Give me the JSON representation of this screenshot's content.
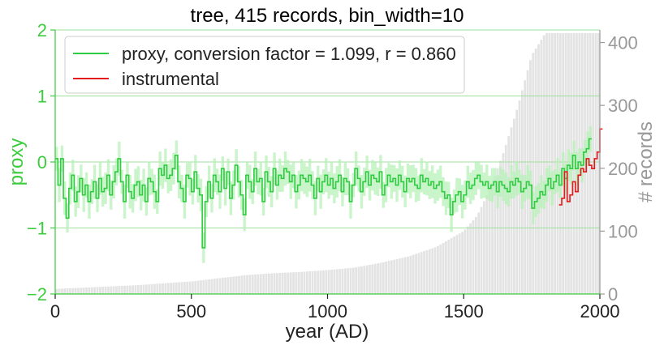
{
  "chart_data": {
    "type": "line",
    "title": "tree, 415 records, bin_width=10",
    "xlabel": "year (AD)",
    "ylabel": "proxy",
    "y2label": "# records",
    "xlim": [
      0,
      2000
    ],
    "ylim": [
      -2,
      2
    ],
    "y2lim": [
      0,
      420
    ],
    "x_ticks": [
      "0",
      "500",
      "1000",
      "1500",
      "2000"
    ],
    "y_ticks": [
      "−2",
      "−1",
      "0",
      "1",
      "2"
    ],
    "y2_ticks": [
      "0",
      "100",
      "200",
      "300",
      "400"
    ],
    "grid": "horizontal",
    "legend_position": "top-left",
    "colors": {
      "proxy": "#2ecc40",
      "proxy_band": "#b8f0b8",
      "instrumental": "#e31a1c",
      "records": "#e3e3e3",
      "axis_left": "#3dcc3d",
      "axis_right": "#999999",
      "grid": "#9fe09f"
    },
    "legend": [
      {
        "label": "proxy, conversion factor = 1.099, r = 0.860",
        "color": "#2ecc40"
      },
      {
        "label": "instrumental",
        "color": "#e31a1c"
      }
    ],
    "records": {
      "x": [
        0,
        100,
        200,
        300,
        400,
        500,
        600,
        700,
        800,
        900,
        1000,
        1100,
        1200,
        1300,
        1400,
        1500,
        1550,
        1600,
        1650,
        1700,
        1750,
        1800,
        1850,
        1900,
        1950,
        2000
      ],
      "values": [
        8,
        10,
        12,
        14,
        17,
        20,
        25,
        30,
        33,
        35,
        38,
        42,
        50,
        60,
        75,
        100,
        125,
        170,
        230,
        300,
        380,
        415,
        415,
        415,
        415,
        415
      ]
    },
    "series": [
      {
        "name": "proxy, conversion factor = 1.099, r = 0.860",
        "step": 10,
        "x_start": 0,
        "values": [
          0.05,
          -0.35,
          0.05,
          -0.55,
          -0.85,
          -0.4,
          -0.2,
          -0.6,
          -0.45,
          -0.25,
          -0.5,
          -0.35,
          -0.6,
          -0.45,
          -0.3,
          -0.55,
          -0.25,
          -0.45,
          -0.4,
          -0.2,
          -0.5,
          -0.3,
          -0.15,
          0.05,
          -0.3,
          -0.6,
          -0.2,
          -0.45,
          -0.55,
          -0.35,
          -0.3,
          -0.5,
          -0.35,
          -0.6,
          -0.25,
          -0.3,
          -0.45,
          -0.6,
          -0.1,
          -0.2,
          -0.05,
          -0.25,
          -0.2,
          -0.1,
          0.1,
          -0.3,
          -0.4,
          -0.6,
          -0.2,
          -0.25,
          -0.45,
          -0.15,
          -0.4,
          -0.5,
          -1.3,
          -0.6,
          -0.3,
          -0.55,
          -0.2,
          -0.3,
          -0.45,
          -0.1,
          -0.4,
          -0.15,
          -0.55,
          -0.35,
          -0.05,
          -0.3,
          -0.5,
          -0.8,
          -0.2,
          -0.3,
          -0.45,
          -0.1,
          -0.3,
          -0.25,
          -0.6,
          -0.15,
          -0.3,
          -0.45,
          -0.1,
          -0.35,
          -0.2,
          -0.25,
          -0.1,
          -0.15,
          -0.3,
          -0.2,
          -0.45,
          -0.35,
          -0.2,
          -0.25,
          -0.3,
          -0.2,
          -0.35,
          -0.55,
          -0.25,
          -0.45,
          -0.3,
          -0.2,
          -0.35,
          -0.25,
          -0.4,
          -0.3,
          -0.2,
          -0.45,
          -0.25,
          -0.3,
          -0.6,
          -0.35,
          -0.1,
          -0.25,
          -0.45,
          -0.3,
          -0.15,
          -0.35,
          -0.2,
          -0.25,
          -0.3,
          -0.15,
          -0.5,
          -0.35,
          -0.2,
          -0.3,
          -0.25,
          -0.35,
          -0.2,
          -0.3,
          -0.45,
          -0.25,
          -0.3,
          -0.25,
          -0.35,
          -0.4,
          -0.2,
          -0.3,
          -0.25,
          -0.35,
          -0.3,
          -0.4,
          -0.35,
          -0.3,
          -0.45,
          -0.55,
          -0.5,
          -0.8,
          -0.6,
          -0.5,
          -0.45,
          -0.6,
          -0.5,
          -0.3,
          -0.4,
          -0.35,
          -0.25,
          -0.2,
          -0.3,
          -0.35,
          -0.3,
          -0.4,
          -0.35,
          -0.3,
          -0.45,
          -0.3,
          -0.35,
          -0.4,
          -0.45,
          -0.3,
          -0.35,
          -0.25,
          -0.3,
          -0.45,
          -0.4,
          -0.3,
          -0.35,
          -0.7,
          -0.6,
          -0.55,
          -0.45,
          -0.5,
          -0.35,
          -0.25,
          -0.4,
          -0.3,
          -0.2,
          -0.35,
          -0.1,
          -0.25,
          -0.05,
          -0.1,
          0.1,
          -0.1,
          0.0,
          -0.05,
          0.15,
          0.2,
          0.35
        ]
      },
      {
        "name": "instrumental",
        "step": 10,
        "x_start": 1850,
        "values": [
          -0.65,
          -0.55,
          -0.15,
          -0.6,
          -0.5,
          -0.3,
          -0.45,
          -0.2,
          -0.1,
          -0.15,
          0.05,
          -0.05,
          -0.1,
          0.05,
          0.15,
          0.5
        ]
      }
    ]
  }
}
